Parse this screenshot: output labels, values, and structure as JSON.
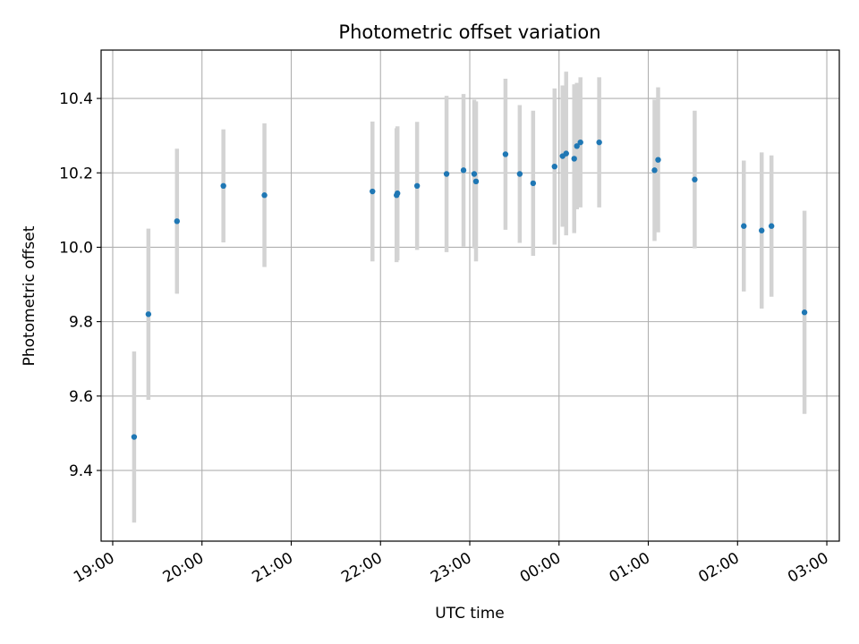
{
  "chart_data": {
    "type": "scatter",
    "title": "Photometric offset variation",
    "xlabel": "UTC time",
    "ylabel": "Photometric offset",
    "x_unit": "hours",
    "x_ticks": [
      {
        "value": 19,
        "label": "19:00"
      },
      {
        "value": 20,
        "label": "20:00"
      },
      {
        "value": 21,
        "label": "21:00"
      },
      {
        "value": 22,
        "label": "22:00"
      },
      {
        "value": 23,
        "label": "23:00"
      },
      {
        "value": 24,
        "label": "00:00"
      },
      {
        "value": 25,
        "label": "01:00"
      },
      {
        "value": 26,
        "label": "02:00"
      },
      {
        "value": 27,
        "label": "03:00"
      }
    ],
    "y_ticks": [
      9.4,
      9.6,
      9.8,
      10.0,
      10.2,
      10.4
    ],
    "y_tick_labels": [
      "9.4",
      "9.6",
      "9.8",
      "10.0",
      "10.2",
      "10.4"
    ],
    "xlim": [
      18.87,
      27.14
    ],
    "ylim": [
      9.21,
      10.53
    ],
    "grid": true,
    "colors": {
      "point": "#1f77b4",
      "errorbar": "#d3d3d3",
      "grid": "#b0b0b0",
      "axis": "#000000"
    },
    "points": [
      {
        "x": 19.24,
        "y": 9.49,
        "err": 0.23
      },
      {
        "x": 19.4,
        "y": 9.82,
        "err": 0.23
      },
      {
        "x": 19.72,
        "y": 10.07,
        "err": 0.195
      },
      {
        "x": 20.24,
        "y": 10.165,
        "err": 0.152
      },
      {
        "x": 20.7,
        "y": 10.14,
        "err": 0.193
      },
      {
        "x": 21.91,
        "y": 10.15,
        "err": 0.188
      },
      {
        "x": 22.18,
        "y": 10.14,
        "err": 0.18
      },
      {
        "x": 22.19,
        "y": 10.145,
        "err": 0.18
      },
      {
        "x": 22.41,
        "y": 10.165,
        "err": 0.172
      },
      {
        "x": 22.74,
        "y": 10.197,
        "err": 0.21
      },
      {
        "x": 22.93,
        "y": 10.207,
        "err": 0.205
      },
      {
        "x": 23.05,
        "y": 10.197,
        "err": 0.2
      },
      {
        "x": 23.07,
        "y": 10.177,
        "err": 0.215
      },
      {
        "x": 23.4,
        "y": 10.25,
        "err": 0.203
      },
      {
        "x": 23.56,
        "y": 10.197,
        "err": 0.185
      },
      {
        "x": 23.71,
        "y": 10.172,
        "err": 0.195
      },
      {
        "x": 23.95,
        "y": 10.217,
        "err": 0.21
      },
      {
        "x": 24.04,
        "y": 10.245,
        "err": 0.19
      },
      {
        "x": 24.08,
        "y": 10.252,
        "err": 0.22
      },
      {
        "x": 24.17,
        "y": 10.238,
        "err": 0.2
      },
      {
        "x": 24.2,
        "y": 10.272,
        "err": 0.17
      },
      {
        "x": 24.24,
        "y": 10.282,
        "err": 0.175
      },
      {
        "x": 24.45,
        "y": 10.282,
        "err": 0.175
      },
      {
        "x": 25.07,
        "y": 10.207,
        "err": 0.19
      },
      {
        "x": 25.11,
        "y": 10.235,
        "err": 0.195
      },
      {
        "x": 25.52,
        "y": 10.182,
        "err": 0.185
      },
      {
        "x": 26.07,
        "y": 10.057,
        "err": 0.176
      },
      {
        "x": 26.27,
        "y": 10.045,
        "err": 0.21
      },
      {
        "x": 26.38,
        "y": 10.057,
        "err": 0.19
      },
      {
        "x": 26.75,
        "y": 9.825,
        "err": 0.273
      }
    ]
  }
}
